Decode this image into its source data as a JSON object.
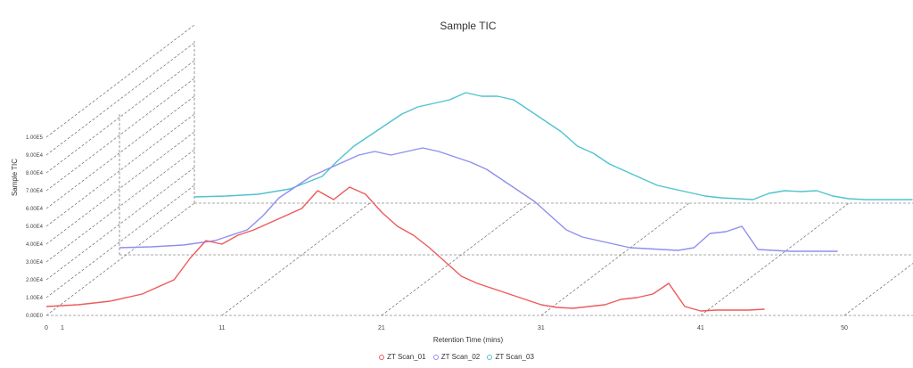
{
  "chart_data": {
    "type": "line",
    "title": "Sample TIC",
    "xlabel": "Retention Time (mins)",
    "ylabel": "Sample TIC",
    "xlim": [
      0,
      52
    ],
    "ylim": [
      0,
      100000
    ],
    "x_ticks": [
      "0",
      "1",
      "11",
      "21",
      "31",
      "41",
      "50"
    ],
    "y_ticks": [
      "0.00E0",
      "1.00E4",
      "2.00E4",
      "3.00E4",
      "4.00E4",
      "5.00E4",
      "6.00E4",
      "7.00E4",
      "8.00E4",
      "9.00E4",
      "1.00E5"
    ],
    "grid": true,
    "legend_position": "bottom",
    "series": [
      {
        "name": "ZT Scan_01",
        "color": "#ee5a5a",
        "x": [
          0,
          2,
          4,
          6,
          8,
          9,
          10,
          11,
          12,
          13,
          14,
          15,
          16,
          17,
          18,
          19,
          20,
          21,
          22,
          23,
          24,
          25,
          26,
          27,
          28,
          29,
          30,
          31,
          32,
          33,
          34,
          35,
          36,
          37,
          38,
          39,
          40,
          41,
          42,
          43,
          44,
          45
        ],
        "y": [
          5000,
          6000,
          8000,
          12000,
          20000,
          32000,
          42000,
          40000,
          45000,
          48000,
          52000,
          56000,
          60000,
          70000,
          65000,
          72000,
          68000,
          58000,
          50000,
          45000,
          38000,
          30000,
          22000,
          18000,
          15000,
          12000,
          9000,
          6000,
          4500,
          4000,
          5000,
          6000,
          9000,
          10000,
          12000,
          18000,
          5000,
          2500,
          3000,
          3000,
          3000,
          3500
        ]
      },
      {
        "name": "ZT Scan_02",
        "color": "#8f8ff0",
        "x": [
          0,
          2,
          4,
          6,
          8,
          9,
          10,
          11,
          12,
          13,
          14,
          15,
          16,
          17,
          18,
          19,
          20,
          21,
          22,
          23,
          24,
          25,
          26,
          27,
          28,
          29,
          30,
          31,
          32,
          33,
          34,
          35,
          36,
          37,
          38,
          39,
          40,
          41,
          42,
          43,
          44,
          45
        ],
        "y": [
          4000,
          4500,
          5500,
          8000,
          14000,
          22000,
          32000,
          38000,
          44000,
          48000,
          52000,
          56000,
          58000,
          56000,
          58000,
          60000,
          58000,
          55000,
          52000,
          48000,
          42000,
          36000,
          30000,
          22000,
          14000,
          10000,
          8000,
          6000,
          4000,
          3500,
          3000,
          2500,
          4000,
          12000,
          13000,
          16000,
          3000,
          2500,
          2000,
          2000,
          2000,
          2000
        ]
      },
      {
        "name": "ZT Scan_03",
        "color": "#4fc3cf",
        "x": [
          0,
          2,
          4,
          6,
          8,
          9,
          10,
          11,
          12,
          13,
          14,
          15,
          16,
          17,
          18,
          19,
          20,
          21,
          22,
          23,
          24,
          25,
          26,
          27,
          28,
          29,
          30,
          31,
          32,
          33,
          34,
          35,
          36,
          37,
          38,
          39,
          40,
          41,
          42,
          43,
          44,
          45
        ],
        "y": [
          3500,
          4000,
          5000,
          8000,
          15000,
          24000,
          32000,
          38000,
          44000,
          50000,
          54000,
          56000,
          58000,
          62000,
          60000,
          60000,
          58000,
          52000,
          46000,
          40000,
          32000,
          28000,
          22000,
          18000,
          14000,
          10000,
          8000,
          6000,
          4000,
          3000,
          2500,
          2000,
          5500,
          7000,
          6500,
          7000,
          4000,
          2500,
          2000,
          2000,
          2000,
          2000
        ]
      }
    ]
  }
}
